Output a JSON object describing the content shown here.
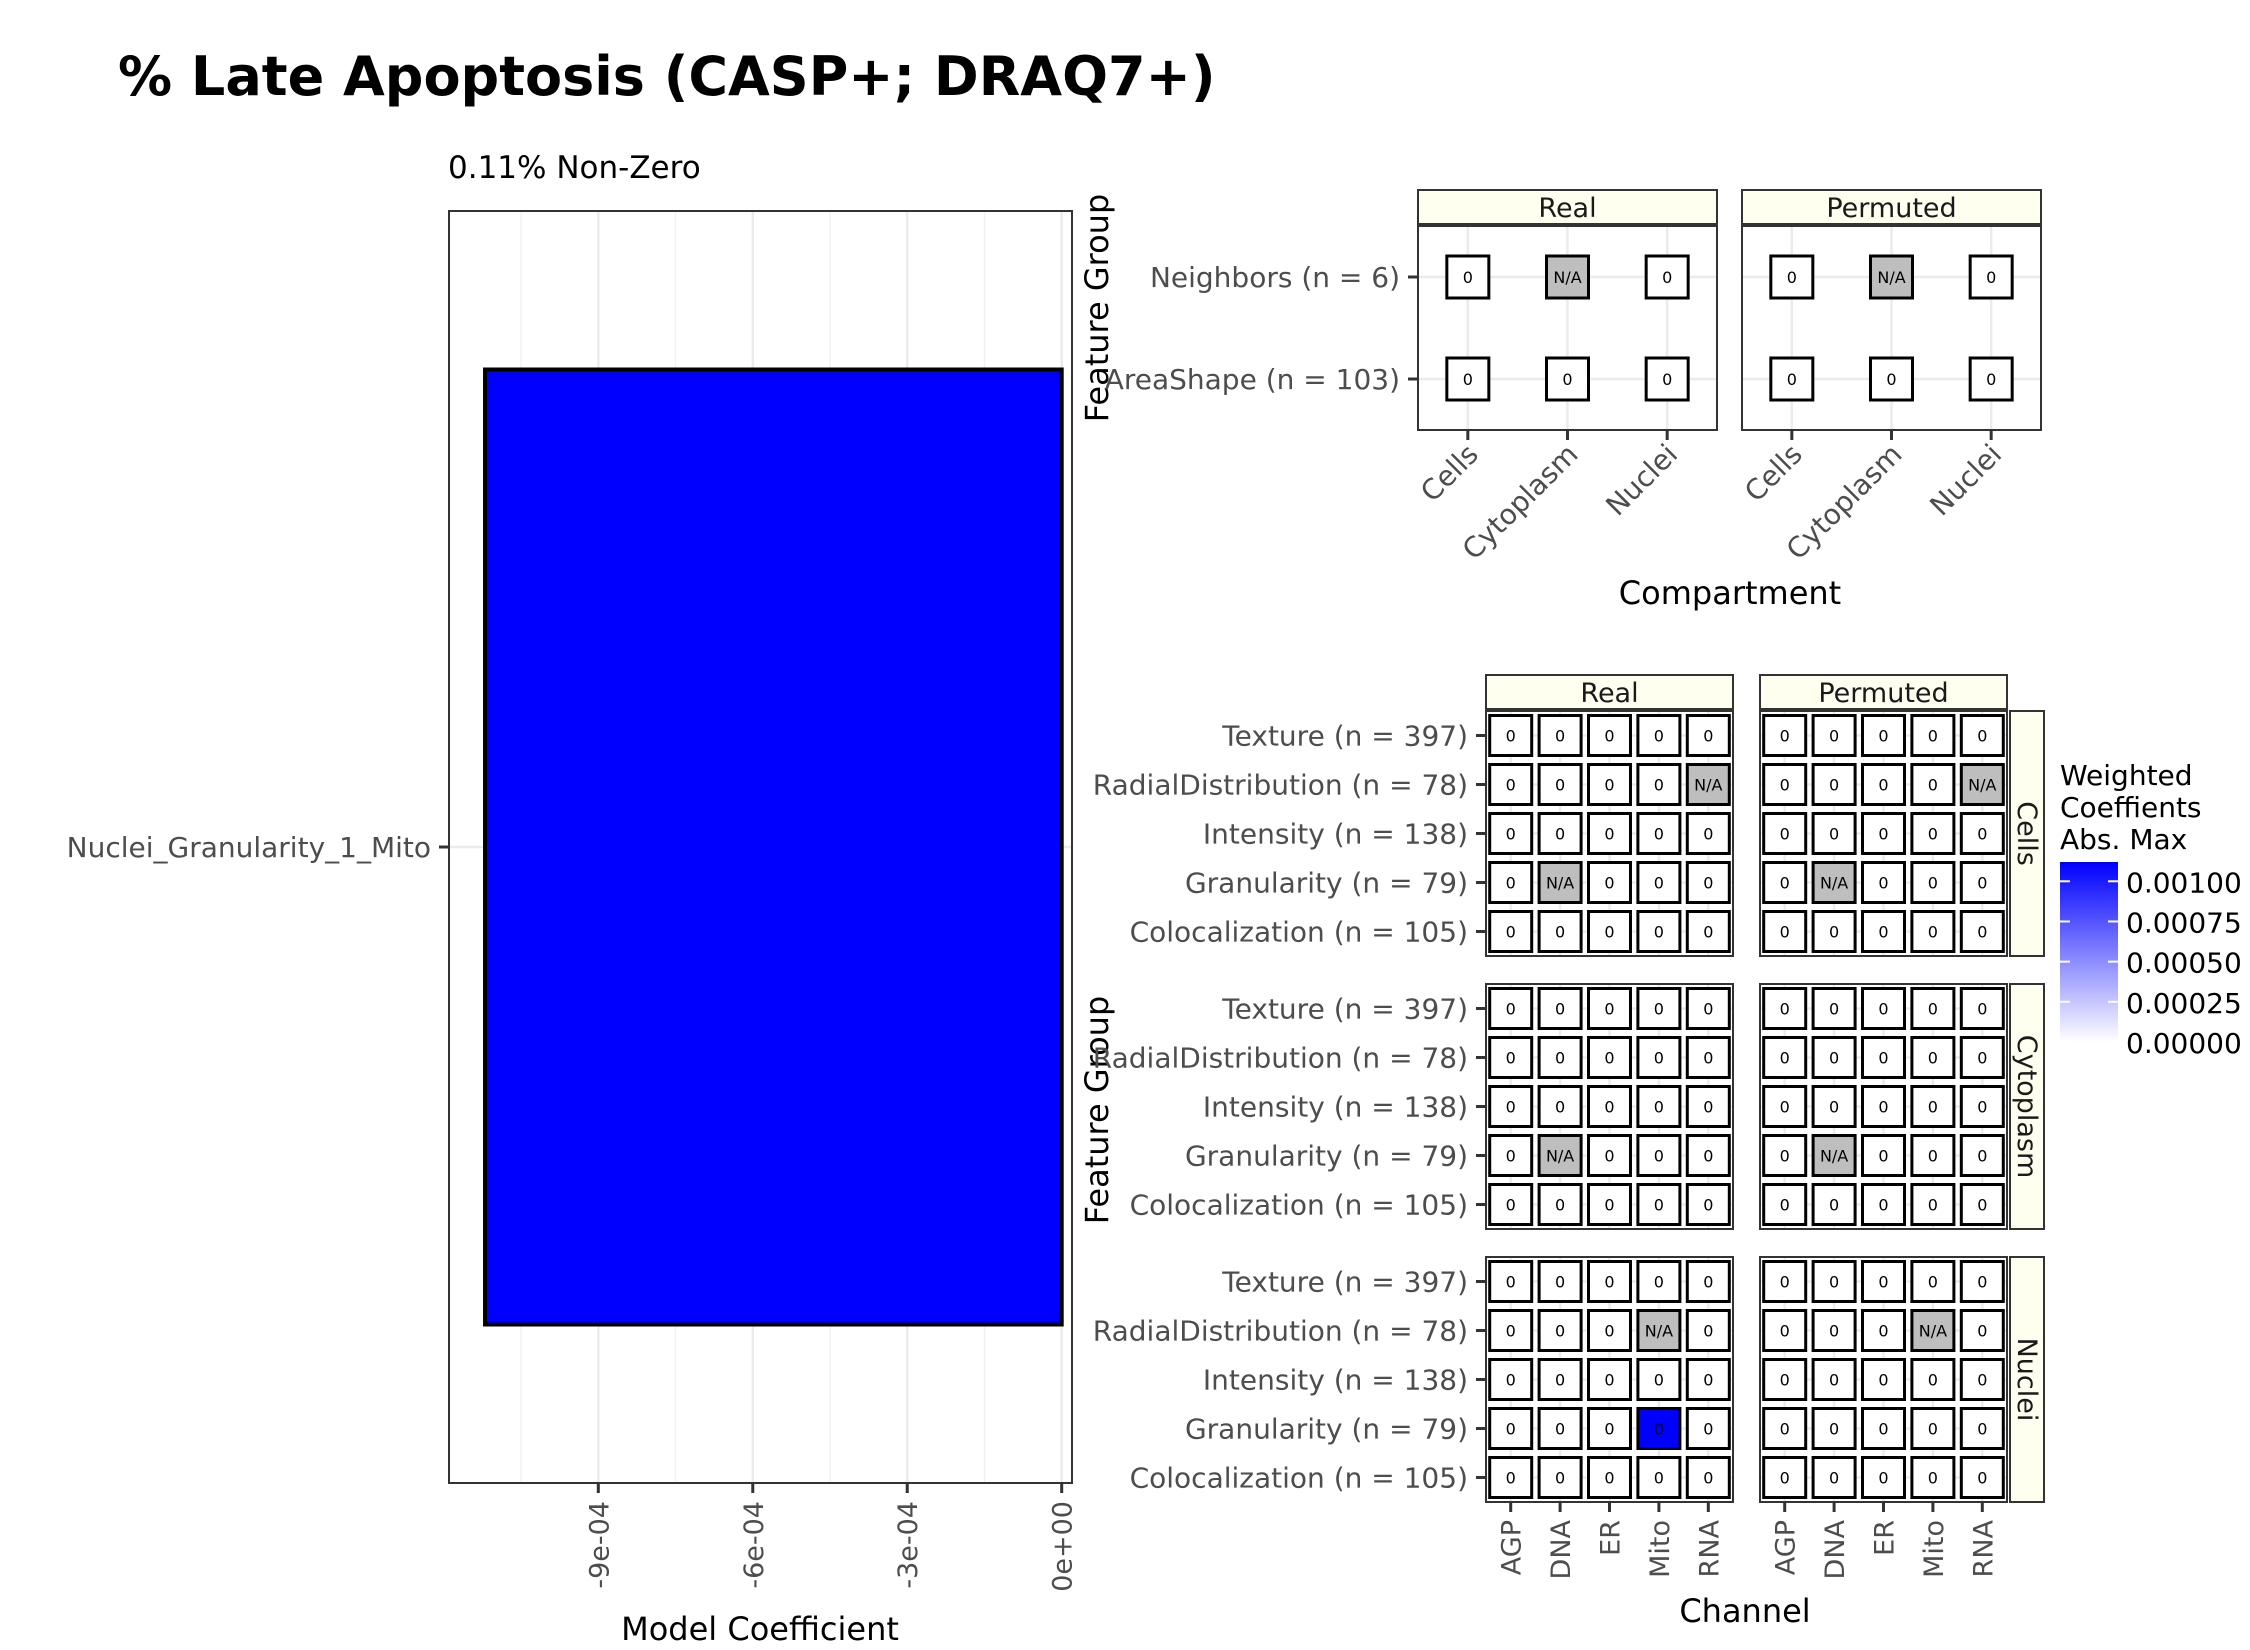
{
  "title": "% Late Apoptosis (CASP+; DRAQ7+)",
  "chart_data": [
    {
      "type": "bar",
      "orientation": "horizontal",
      "subtitle": "0.11% Non-Zero",
      "categories": [
        "Nuclei_Granularity_1_Mito"
      ],
      "values": [
        -0.00112
      ],
      "xlabel": "Model Coefficient",
      "ylabel": "",
      "xlim": [
        -0.00119,
        2e-05
      ],
      "x_ticks": [
        -0.0009,
        -0.0006,
        -0.0003,
        0
      ],
      "x_tick_labels": [
        "-9e-04",
        "-6e-04",
        "-3e-04",
        "0e+00"
      ],
      "grid": true,
      "bar_color": "#0000ff"
    },
    {
      "type": "heatmap",
      "xlabel": "Compartment",
      "ylabel": "Feature Group",
      "facets": [
        "Real",
        "Permuted"
      ],
      "x_categories": [
        "Cells",
        "Cytoplasm",
        "Nuclei"
      ],
      "y_categories": [
        "Neighbors (n = 6)",
        "AreaShape (n = 103)"
      ],
      "cells": {
        "Real": [
          [
            "0",
            "N/A",
            "0"
          ],
          [
            "0",
            "0",
            "0"
          ]
        ],
        "Permuted": [
          [
            "0",
            "N/A",
            "0"
          ],
          [
            "0",
            "0",
            "0"
          ]
        ]
      },
      "grid": true
    },
    {
      "type": "heatmap",
      "xlabel": "Channel",
      "ylabel": "Feature Group",
      "col_facets": [
        "Real",
        "Permuted"
      ],
      "row_facets": [
        "Cells",
        "Cytoplasm",
        "Nuclei"
      ],
      "x_categories": [
        "AGP",
        "DNA",
        "ER",
        "Mito",
        "RNA"
      ],
      "y_categories": [
        "Texture (n = 397)",
        "RadialDistribution (n = 78)",
        "Intensity (n = 138)",
        "Granularity (n = 79)",
        "Colocalization (n = 105)"
      ],
      "cells": {
        "Cells": {
          "Real": [
            [
              "0",
              "0",
              "0",
              "0",
              "0"
            ],
            [
              "0",
              "0",
              "0",
              "0",
              "N/A"
            ],
            [
              "0",
              "0",
              "0",
              "0",
              "0"
            ],
            [
              "0",
              "N/A",
              "0",
              "0",
              "0"
            ],
            [
              "0",
              "0",
              "0",
              "0",
              "0"
            ]
          ],
          "Permuted": [
            [
              "0",
              "0",
              "0",
              "0",
              "0"
            ],
            [
              "0",
              "0",
              "0",
              "0",
              "N/A"
            ],
            [
              "0",
              "0",
              "0",
              "0",
              "0"
            ],
            [
              "0",
              "N/A",
              "0",
              "0",
              "0"
            ],
            [
              "0",
              "0",
              "0",
              "0",
              "0"
            ]
          ]
        },
        "Cytoplasm": {
          "Real": [
            [
              "0",
              "0",
              "0",
              "0",
              "0"
            ],
            [
              "0",
              "0",
              "0",
              "0",
              "0"
            ],
            [
              "0",
              "0",
              "0",
              "0",
              "0"
            ],
            [
              "0",
              "N/A",
              "0",
              "0",
              "0"
            ],
            [
              "0",
              "0",
              "0",
              "0",
              "0"
            ]
          ],
          "Permuted": [
            [
              "0",
              "0",
              "0",
              "0",
              "0"
            ],
            [
              "0",
              "0",
              "0",
              "0",
              "0"
            ],
            [
              "0",
              "0",
              "0",
              "0",
              "0"
            ],
            [
              "0",
              "N/A",
              "0",
              "0",
              "0"
            ],
            [
              "0",
              "0",
              "0",
              "0",
              "0"
            ]
          ]
        },
        "Nuclei": {
          "Real": [
            [
              "0",
              "0",
              "0",
              "0",
              "0"
            ],
            [
              "0",
              "0",
              "0",
              "N/A",
              "0"
            ],
            [
              "0",
              "0",
              "0",
              "0",
              "0"
            ],
            [
              "0",
              "0",
              "0",
              "0",
              "0"
            ],
            [
              "0",
              "0",
              "0",
              "0",
              "0"
            ]
          ],
          "Permuted": [
            [
              "0",
              "0",
              "0",
              "0",
              "0"
            ],
            [
              "0",
              "0",
              "0",
              "N/A",
              "0"
            ],
            [
              "0",
              "0",
              "0",
              "0",
              "0"
            ],
            [
              "0",
              "0",
              "0",
              "0",
              "0"
            ],
            [
              "0",
              "0",
              "0",
              "0",
              "0"
            ]
          ]
        }
      },
      "weights": {
        "Nuclei": {
          "Real": [
            [
              0,
              0,
              0,
              0,
              0
            ],
            [
              0,
              0,
              0,
              0,
              0
            ],
            [
              0,
              0,
              0,
              0,
              0
            ],
            [
              0,
              0,
              0,
              0.00112,
              0
            ],
            [
              0,
              0,
              0,
              0,
              0
            ]
          ],
          "Permuted": [
            [
              0,
              0,
              0,
              0,
              0
            ],
            [
              0,
              0,
              0,
              0,
              0
            ],
            [
              0,
              0,
              0,
              0,
              0
            ],
            [
              0,
              0,
              0,
              0,
              0
            ],
            [
              0,
              0,
              0,
              0,
              0
            ]
          ]
        }
      },
      "legend": {
        "title_lines": [
          "Weighted",
          "Coeffients",
          "Abs. Max"
        ],
        "ticks": [
          "0.00100",
          "0.00075",
          "0.00050",
          "0.00025",
          "0.00000"
        ],
        "tick_values": [
          0.001,
          0.00075,
          0.0005,
          0.00025,
          0
        ],
        "min": 0,
        "max": 0.00112,
        "low_color": "#ffffff",
        "high_color": "#0000ff",
        "position": "right"
      }
    }
  ],
  "colors": {
    "na_fill": "#bebebe",
    "cell_fill": "#ffffff",
    "strip_fill": "#fffff0",
    "grid": "#ebebeb",
    "bar_fill": "#0000ff"
  }
}
